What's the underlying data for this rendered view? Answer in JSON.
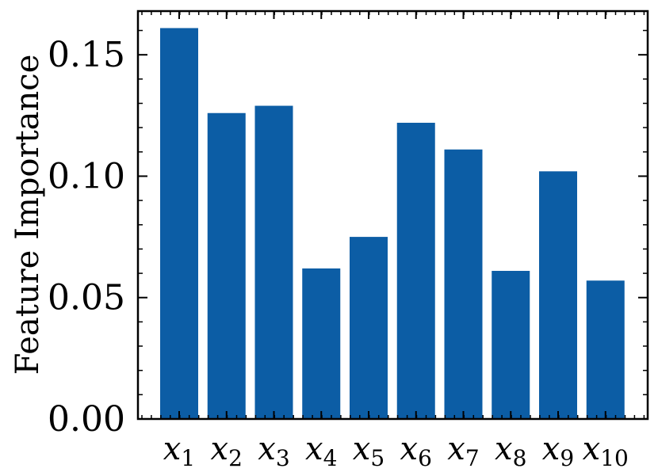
{
  "chart_data": {
    "type": "bar",
    "title": "",
    "xlabel": "",
    "ylabel": "Feature Importance",
    "ylim": [
      0,
      0.168
    ],
    "yticks": [
      "0.00",
      "0.05",
      "0.10",
      "0.15"
    ],
    "categories": [
      {
        "base": "x",
        "sub": "1"
      },
      {
        "base": "x",
        "sub": "2"
      },
      {
        "base": "x",
        "sub": "3"
      },
      {
        "base": "x",
        "sub": "4"
      },
      {
        "base": "x",
        "sub": "5"
      },
      {
        "base": "x",
        "sub": "6"
      },
      {
        "base": "x",
        "sub": "7"
      },
      {
        "base": "x",
        "sub": "8"
      },
      {
        "base": "x",
        "sub": "9"
      },
      {
        "base": "x",
        "sub": "10"
      }
    ],
    "values": [
      0.161,
      0.126,
      0.129,
      0.062,
      0.075,
      0.122,
      0.111,
      0.061,
      0.102,
      0.057
    ],
    "bar_color": "#0C5DA5",
    "grid": false,
    "legend": "none"
  }
}
